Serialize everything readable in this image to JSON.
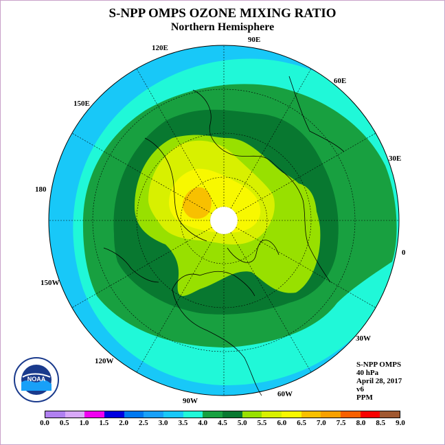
{
  "header": {
    "title": "S-NPP OMPS OZONE MIXING RATIO",
    "subtitle": "Northern Hemisphere"
  },
  "map": {
    "projection": "north-polar-stereographic",
    "longitude_labels": [
      "90E",
      "60E",
      "30E",
      "0",
      "30W",
      "60W",
      "90W",
      "120W",
      "150W",
      "180",
      "150E",
      "120E"
    ],
    "ozone_bands": [
      {
        "range": "3.0-3.5",
        "color": "#18c8f8"
      },
      {
        "range": "3.5-4.0",
        "color": "#20f8d8"
      },
      {
        "range": "4.0-4.5",
        "color": "#18a040"
      },
      {
        "range": "4.5-5.0",
        "color": "#087830"
      },
      {
        "range": "5.0-5.5",
        "color": "#98e000"
      },
      {
        "range": "5.5-6.0",
        "color": "#d8f000"
      },
      {
        "range": "6.0-6.5",
        "color": "#f8f800"
      },
      {
        "range": "6.5-7.0",
        "color": "#f8c000"
      },
      {
        "range": "7.0-7.5",
        "color": "#f8a000"
      }
    ]
  },
  "info": {
    "instrument": "S-NPP OMPS",
    "level": "40 hPa",
    "date": "April 28, 2017",
    "version": "v6",
    "units": "PPM"
  },
  "colorbar": {
    "colors": [
      "#b080f0",
      "#d8a8f8",
      "#f000f0",
      "#0000e0",
      "#0078f0",
      "#18a0f8",
      "#18c8f8",
      "#20f8d8",
      "#18a040",
      "#087830",
      "#98e000",
      "#d8f000",
      "#f8f800",
      "#f8c000",
      "#f8a000",
      "#f86000",
      "#f80000",
      "#a05830"
    ],
    "labels": [
      "0.0",
      "0.5",
      "1.0",
      "1.5",
      "2.0",
      "2.5",
      "3.0",
      "3.5",
      "4.0",
      "4.5",
      "5.0",
      "5.5",
      "6.0",
      "6.5",
      "7.0",
      "7.5",
      "8.0",
      "8.5",
      "9.0"
    ]
  },
  "logo": {
    "name": "NOAA",
    "ring_text": "NATIONAL OCEANIC AND ATMOSPHERIC ADMINISTRATION",
    "bottom_text": "U.S. DEPARTMENT OF COMMERCE",
    "ring_color": "#ffffff",
    "inner_color": "#1a3a8c"
  }
}
